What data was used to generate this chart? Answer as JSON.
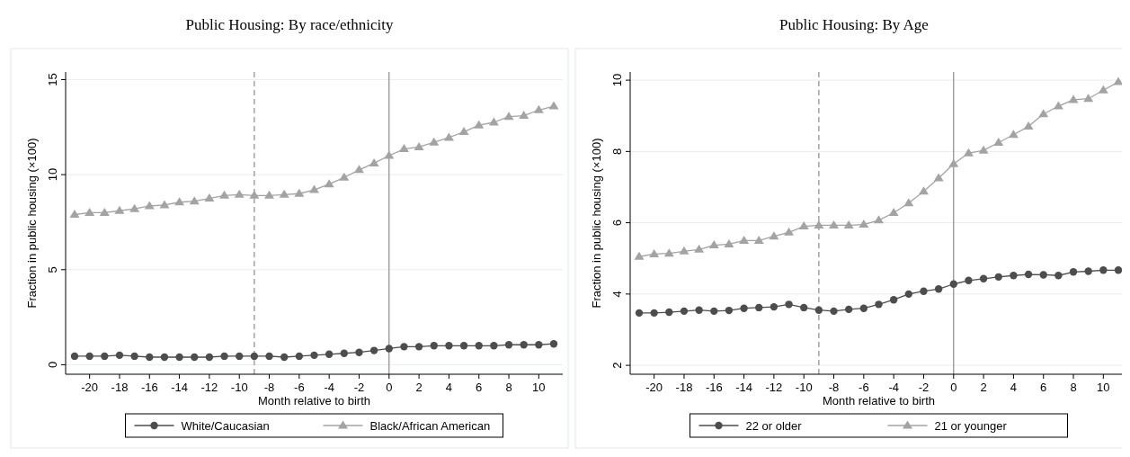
{
  "chart_data": [
    {
      "type": "line",
      "title": "Public Housing: By race/ethnicity",
      "xlabel": "Month relative to birth",
      "ylabel": "Fraction in public housing (×100)",
      "x": [
        -21,
        -20,
        -19,
        -18,
        -17,
        -16,
        -15,
        -14,
        -13,
        -12,
        -11,
        -10,
        -9,
        -8,
        -7,
        -6,
        -5,
        -4,
        -3,
        -2,
        -1,
        0,
        1,
        2,
        3,
        4,
        5,
        6,
        7,
        8,
        9,
        10,
        11
      ],
      "xlim": [
        -21.6,
        11.6
      ],
      "xticks": [
        -20,
        -18,
        -16,
        -14,
        -12,
        -10,
        -8,
        -6,
        -4,
        -2,
        0,
        2,
        4,
        6,
        8,
        10
      ],
      "ylim": [
        -0.5,
        15.4
      ],
      "yticks": [
        0,
        5,
        10,
        15
      ],
      "grid": "y",
      "legend": "bottom",
      "series": [
        {
          "name": "White/Caucasian",
          "color": "#4d4d4d",
          "marker": "circle",
          "values": [
            0.45,
            0.45,
            0.45,
            0.5,
            0.45,
            0.4,
            0.4,
            0.4,
            0.4,
            0.4,
            0.45,
            0.45,
            0.45,
            0.45,
            0.4,
            0.45,
            0.5,
            0.55,
            0.6,
            0.65,
            0.75,
            0.85,
            0.95,
            0.95,
            1.0,
            1.0,
            1.0,
            1.0,
            1.0,
            1.05,
            1.05,
            1.05,
            1.1
          ]
        },
        {
          "name": "Black/African American",
          "color": "#a3a3a3",
          "marker": "triangle",
          "values": [
            7.9,
            8.0,
            8.0,
            8.1,
            8.2,
            8.35,
            8.4,
            8.55,
            8.6,
            8.75,
            8.9,
            8.95,
            8.9,
            8.9,
            8.95,
            9.0,
            9.2,
            9.5,
            9.85,
            10.25,
            10.6,
            11.0,
            11.35,
            11.45,
            11.7,
            11.95,
            12.25,
            12.6,
            12.75,
            13.05,
            13.1,
            13.4,
            13.6
          ]
        }
      ],
      "ref_lines": [
        {
          "axis": "x",
          "value": -9,
          "label": null,
          "color": "#8c8c8c",
          "line_style": "dashed"
        },
        {
          "axis": "x",
          "value": 0,
          "label": null,
          "color": "#8c8c8c",
          "line_style": "solid"
        }
      ]
    },
    {
      "type": "line",
      "title": "Public Housing: By Age",
      "xlabel": "Month relative to birth",
      "ylabel": "Fraction in public housing (×100)",
      "x": [
        -21,
        -20,
        -19,
        -18,
        -17,
        -16,
        -15,
        -14,
        -13,
        -12,
        -11,
        -10,
        -9,
        -8,
        -7,
        -6,
        -5,
        -4,
        -3,
        -2,
        -1,
        0,
        1,
        2,
        3,
        4,
        5,
        6,
        7,
        8,
        9,
        10,
        11
      ],
      "xlim": [
        -21.6,
        11.6
      ],
      "xticks": [
        -20,
        -18,
        -16,
        -14,
        -12,
        -10,
        -8,
        -6,
        -4,
        -2,
        0,
        2,
        4,
        6,
        8,
        10
      ],
      "ylim": [
        1.75,
        10.23
      ],
      "yticks": [
        2,
        4,
        6,
        8,
        10
      ],
      "grid": "y",
      "legend": "bottom",
      "series": [
        {
          "name": "22 or older",
          "color": "#4d4d4d",
          "marker": "circle",
          "values": [
            3.47,
            3.47,
            3.49,
            3.52,
            3.55,
            3.52,
            3.54,
            3.6,
            3.62,
            3.64,
            3.71,
            3.62,
            3.55,
            3.52,
            3.57,
            3.6,
            3.71,
            3.84,
            4.0,
            4.08,
            4.14,
            4.28,
            4.38,
            4.43,
            4.48,
            4.52,
            4.55,
            4.54,
            4.52,
            4.62,
            4.64,
            4.67,
            4.67
          ]
        },
        {
          "name": "21 or younger",
          "color": "#a3a3a3",
          "marker": "triangle",
          "values": [
            5.05,
            5.12,
            5.14,
            5.2,
            5.25,
            5.37,
            5.4,
            5.5,
            5.5,
            5.62,
            5.73,
            5.9,
            5.93,
            5.93,
            5.93,
            5.95,
            6.07,
            6.28,
            6.55,
            6.88,
            7.25,
            7.65,
            7.95,
            8.03,
            8.25,
            8.47,
            8.7,
            9.05,
            9.27,
            9.45,
            9.48,
            9.72,
            9.95
          ]
        }
      ],
      "ref_lines": [
        {
          "axis": "x",
          "value": -9,
          "label": null,
          "color": "#8c8c8c",
          "line_style": "dashed"
        },
        {
          "axis": "x",
          "value": 0,
          "label": null,
          "color": "#8c8c8c",
          "line_style": "solid"
        }
      ]
    }
  ]
}
